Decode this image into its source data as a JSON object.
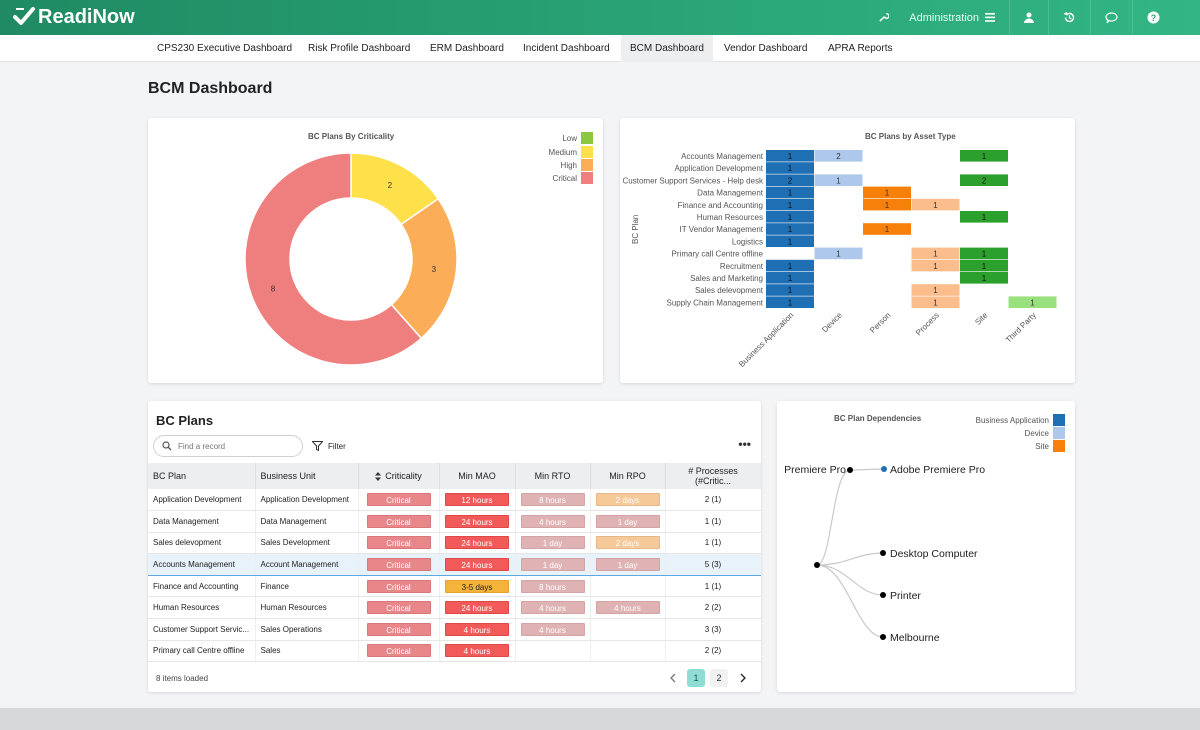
{
  "app": {
    "logo_text": "ReadiNow"
  },
  "topbar": {
    "admin_label": "Administration",
    "icons": [
      "wrench-icon",
      "menu-icon",
      "user-icon",
      "history-icon",
      "chat-icon",
      "help-icon"
    ]
  },
  "nav": {
    "tabs": [
      {
        "label": "CPS230 Executive Dashboard"
      },
      {
        "label": "Risk Profile Dashboard"
      },
      {
        "label": "ERM Dashboard"
      },
      {
        "label": "Incident Dashboard"
      },
      {
        "label": "BCM Dashboard",
        "active": true
      },
      {
        "label": "Vendor Dashboard"
      },
      {
        "label": "APRA Reports"
      }
    ]
  },
  "page": {
    "title": "BCM Dashboard"
  },
  "colors": {
    "low": "#8dc63f",
    "medium": "#fde04a",
    "high": "#fbad57",
    "critical": "#ef7e7e",
    "business_application": "#1f6fb5",
    "device": "#adc8ea",
    "person": "#f7800b",
    "process": "#fbbd8c",
    "site": "#2ca02c",
    "third_party": "#99e07e"
  },
  "donut": {
    "legend": [
      {
        "label": "Low",
        "color": "#8dc63f"
      },
      {
        "label": "Medium",
        "color": "#fde04a"
      },
      {
        "label": "High",
        "color": "#fbad57"
      },
      {
        "label": "Critical",
        "color": "#ef7e7e"
      }
    ]
  },
  "chart_data": [
    {
      "type": "pie",
      "title": "BC Plans By Criticality",
      "categories": [
        "Medium",
        "High",
        "Critical"
      ],
      "values": [
        2,
        3,
        8
      ],
      "legend": [
        "Low",
        "Medium",
        "High",
        "Critical"
      ],
      "colors": [
        "#fde04a",
        "#fbad57",
        "#ef7e7e"
      ],
      "donut": true,
      "legend_position": "top-right"
    },
    {
      "type": "heatmap",
      "title": "BC Plans by Asset Type",
      "ylabel": "BC Plan",
      "x": [
        "Business Application",
        "Device",
        "Person",
        "Process",
        "Site",
        "Third Party"
      ],
      "y": [
        "Accounts Management",
        "Application Development",
        "Customer Support Services - Help desk",
        "Data Management",
        "Finance and Accounting",
        "Human Resources",
        "IT Vendor Management",
        "Logistics",
        "Primary call Centre offline",
        "Recruitment",
        "Sales and Marketing",
        "Sales delevopment",
        "Supply Chain Management"
      ],
      "cells": [
        {
          "row": 0,
          "col": 0,
          "value": 1
        },
        {
          "row": 0,
          "col": 1,
          "value": 2
        },
        {
          "row": 0,
          "col": 4,
          "value": 1
        },
        {
          "row": 1,
          "col": 0,
          "value": 1
        },
        {
          "row": 2,
          "col": 0,
          "value": 2
        },
        {
          "row": 2,
          "col": 1,
          "value": 1
        },
        {
          "row": 2,
          "col": 4,
          "value": 2
        },
        {
          "row": 3,
          "col": 0,
          "value": 1
        },
        {
          "row": 3,
          "col": 2,
          "value": 1
        },
        {
          "row": 4,
          "col": 0,
          "value": 1
        },
        {
          "row": 4,
          "col": 2,
          "value": 1
        },
        {
          "row": 4,
          "col": 3,
          "value": 1
        },
        {
          "row": 5,
          "col": 0,
          "value": 1
        },
        {
          "row": 5,
          "col": 4,
          "value": 1
        },
        {
          "row": 6,
          "col": 0,
          "value": 1
        },
        {
          "row": 6,
          "col": 2,
          "value": 1
        },
        {
          "row": 7,
          "col": 0,
          "value": 1
        },
        {
          "row": 8,
          "col": 1,
          "value": 1
        },
        {
          "row": 8,
          "col": 3,
          "value": 1
        },
        {
          "row": 8,
          "col": 4,
          "value": 1
        },
        {
          "row": 9,
          "col": 0,
          "value": 1
        },
        {
          "row": 9,
          "col": 3,
          "value": 1
        },
        {
          "row": 9,
          "col": 4,
          "value": 1
        },
        {
          "row": 10,
          "col": 0,
          "value": 1
        },
        {
          "row": 10,
          "col": 4,
          "value": 1
        },
        {
          "row": 11,
          "col": 0,
          "value": 1
        },
        {
          "row": 11,
          "col": 3,
          "value": 1
        },
        {
          "row": 12,
          "col": 0,
          "value": 1
        },
        {
          "row": 12,
          "col": 3,
          "value": 1
        },
        {
          "row": 12,
          "col": 5,
          "value": 1
        }
      ],
      "column_colors": [
        "#1f6fb5",
        "#adc8ea",
        "#f7800b",
        "#fbbd8c",
        "#2ca02c",
        "#99e07e"
      ]
    }
  ],
  "bc_plans": {
    "title": "BC Plans",
    "search_placeholder": "Find a record",
    "filter_label": "Filter",
    "more_label": "•••",
    "columns": [
      "BC Plan",
      "Business Unit",
      "Criticality",
      "Min MAO",
      "Min RTO",
      "Min RPO",
      "# Processes (#Critic..."
    ],
    "rows": [
      {
        "plan": "Application Development",
        "unit": "Application Development",
        "crit": "Critical",
        "mao": "12 hours",
        "mao_c": "p-red",
        "rto": "8 hours",
        "rto_c": "p-pink",
        "rpo": "2 days",
        "rpo_c": "p-peach",
        "proc": "2 (1)"
      },
      {
        "plan": "Data Management",
        "unit": "Data Management",
        "crit": "Critical",
        "mao": "24 hours",
        "mao_c": "p-red",
        "rto": "4 hours",
        "rto_c": "p-pink",
        "rpo": "1 day",
        "rpo_c": "p-pink",
        "proc": "1 (1)"
      },
      {
        "plan": "Sales delevopment",
        "unit": "Sales Development",
        "crit": "Critical",
        "mao": "24 hours",
        "mao_c": "p-red",
        "rto": "1 day",
        "rto_c": "p-pink",
        "rpo": "2 days",
        "rpo_c": "p-peach",
        "proc": "1 (1)"
      },
      {
        "plan": "Accounts Management",
        "unit": "Account Management",
        "crit": "Critical",
        "mao": "24 hours",
        "mao_c": "p-red",
        "rto": "1 day",
        "rto_c": "p-pink",
        "rpo": "1 day",
        "rpo_c": "p-pink",
        "proc": "5 (3)",
        "selected": true
      },
      {
        "plan": "Finance and Accounting",
        "unit": "Finance",
        "crit": "Critical",
        "mao": "3-5 days",
        "mao_c": "p-orange",
        "rto": "8 hours",
        "rto_c": "p-pink",
        "rpo": "",
        "rpo_c": "",
        "proc": "1 (1)"
      },
      {
        "plan": "Human Resources",
        "unit": "Human Resources",
        "crit": "Critical",
        "mao": "24 hours",
        "mao_c": "p-red",
        "rto": "4 hours",
        "rto_c": "p-pink",
        "rpo": "4 hours",
        "rpo_c": "p-pink",
        "proc": "2 (2)"
      },
      {
        "plan": "Customer Support Servic...",
        "unit": "Sales Operations",
        "crit": "Critical",
        "mao": "4 hours",
        "mao_c": "p-red",
        "rto": "4 hours",
        "rto_c": "p-pink",
        "rpo": "",
        "rpo_c": "",
        "proc": "3 (3)"
      },
      {
        "plan": "Primary call Centre offline",
        "unit": "Sales",
        "crit": "Critical",
        "mao": "4 hours",
        "mao_c": "p-red",
        "rto": "",
        "rto_c": "",
        "rpo": "",
        "rpo_c": "",
        "proc": "2 (2)"
      }
    ],
    "footer": "8 items loaded",
    "pages": [
      "1",
      "2"
    ],
    "current_page": "1"
  },
  "dependencies": {
    "title": "BC Plan Dependencies",
    "legend": [
      {
        "label": "Business Application",
        "color": "#1f6fb5"
      },
      {
        "label": "Device",
        "color": "#adc8ea"
      },
      {
        "label": "Site",
        "color": "#f7800b"
      }
    ],
    "root": "Premiere Pro",
    "nodes": [
      {
        "label": "Adobe Premiere Pro",
        "color": "#1f6fb5"
      },
      {
        "label": "Desktop Computer",
        "color": "#000000"
      },
      {
        "label": "Printer",
        "color": "#000000"
      },
      {
        "label": "Melbourne",
        "color": "#000000"
      }
    ]
  }
}
